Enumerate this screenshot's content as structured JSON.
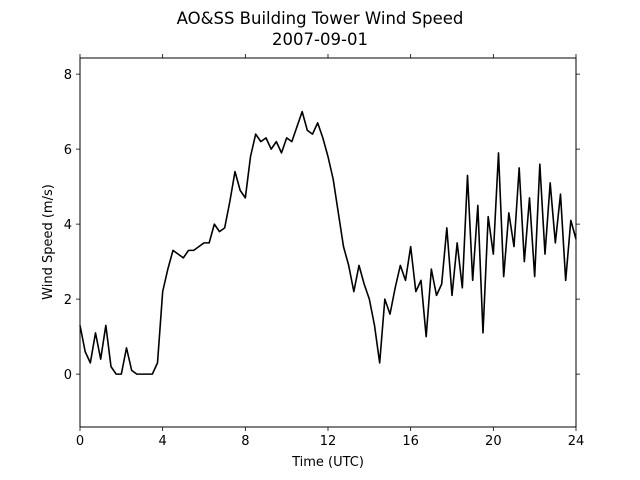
{
  "chart_data": {
    "type": "line",
    "title": "AO&SS Building Tower Wind Speed",
    "subtitle": "2007-09-01",
    "x_label": "Time (UTC)",
    "y_label": "Wind Speed (m/s)",
    "x": [
      0,
      0.25,
      0.5,
      0.75,
      1,
      1.25,
      1.5,
      1.75,
      2,
      2.25,
      2.5,
      2.75,
      3,
      3.25,
      3.5,
      3.75,
      4,
      4.25,
      4.5,
      4.75,
      5,
      5.25,
      5.5,
      5.75,
      6,
      6.25,
      6.5,
      6.75,
      7,
      7.25,
      7.5,
      7.75,
      8,
      8.25,
      8.5,
      8.75,
      9,
      9.25,
      9.5,
      9.75,
      10,
      10.25,
      10.5,
      10.75,
      11,
      11.25,
      11.5,
      11.75,
      12,
      12.25,
      12.5,
      12.75,
      13,
      13.25,
      13.5,
      13.75,
      14,
      14.25,
      14.5,
      14.75,
      15,
      15.25,
      15.5,
      15.75,
      16,
      16.25,
      16.5,
      16.75,
      17,
      17.25,
      17.5,
      17.75,
      18,
      18.25,
      18.5,
      18.75,
      19,
      19.25,
      19.5,
      19.75,
      20,
      20.25,
      20.5,
      20.75,
      21,
      21.25,
      21.5,
      21.75,
      22,
      22.25,
      22.5,
      22.75,
      23,
      23.25,
      23.5,
      23.75,
      24
    ],
    "series": [
      {
        "color": "#000000",
        "values": [
          1.3,
          0.6,
          0.3,
          1.1,
          0.4,
          1.3,
          0.2,
          0,
          0,
          0.7,
          0.1,
          0,
          0,
          0,
          0,
          0.3,
          2.2,
          2.8,
          3.3,
          3.2,
          3.1,
          3.3,
          3.3,
          3.4,
          3.5,
          3.5,
          4.0,
          3.8,
          3.9,
          4.6,
          5.4,
          4.9,
          4.7,
          5.8,
          6.4,
          6.2,
          6.3,
          6.0,
          6.2,
          5.9,
          6.3,
          6.2,
          6.6,
          7.0,
          6.5,
          6.4,
          6.7,
          6.3,
          5.8,
          5.2,
          4.3,
          3.4,
          2.9,
          2.2,
          2.9,
          2.4,
          2.0,
          1.3,
          0.3,
          2.0,
          1.6,
          2.3,
          2.9,
          2.5,
          3.4,
          2.2,
          2.5,
          1.0,
          2.8,
          2.1,
          2.4,
          3.9,
          2.1,
          3.5,
          2.3,
          5.3,
          2.5,
          4.5,
          1.1,
          4.2,
          3.2,
          5.9,
          2.6,
          4.3,
          3.4,
          5.5,
          3.0,
          4.7,
          2.6,
          5.6,
          3.2,
          5.1,
          3.5,
          4.8,
          2.5,
          4.1,
          3.6
        ]
      }
    ],
    "xlim": [
      0,
      24
    ],
    "xticks": [
      0,
      4,
      8,
      12,
      16,
      20,
      24
    ],
    "ylim": [
      -1.41,
      8.43
    ],
    "yticks": [
      0,
      2,
      4,
      6,
      8
    ]
  }
}
